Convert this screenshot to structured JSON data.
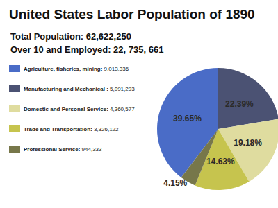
{
  "chart_data": {
    "type": "pie",
    "title": "United States Labor Population of 1890",
    "subtitle": [
      "Total Population: 62,622,250",
      "Over 10 and Employed: 22, 735, 661"
    ],
    "categories": [
      "Agriculture, fisheries, mining:",
      "Manufacturing and Mechanical :",
      "Domestic and Personal Service:",
      "Trade and Transportation:",
      "Professional Service:"
    ],
    "counts": [
      {
        "value": 9013336,
        "label": "9,013,336"
      },
      {
        "value": 5091293,
        "label": "5,091,293"
      },
      {
        "value": 4360577,
        "label": "4,360,577"
      },
      {
        "value": 3326122,
        "label": "3,326,122"
      },
      {
        "value": 944333,
        "label": "944,333"
      }
    ],
    "values": [
      39.65,
      22.39,
      19.18,
      14.63,
      4.15
    ],
    "value_labels": [
      "39.65%",
      "22.39%",
      "19.18%",
      "14.63%",
      "4.15%"
    ],
    "colors": [
      "#4a6cc7",
      "#4b5273",
      "#dfdc9f",
      "#c6c44e",
      "#77774a"
    ],
    "data_labels": true,
    "legend": "left"
  }
}
